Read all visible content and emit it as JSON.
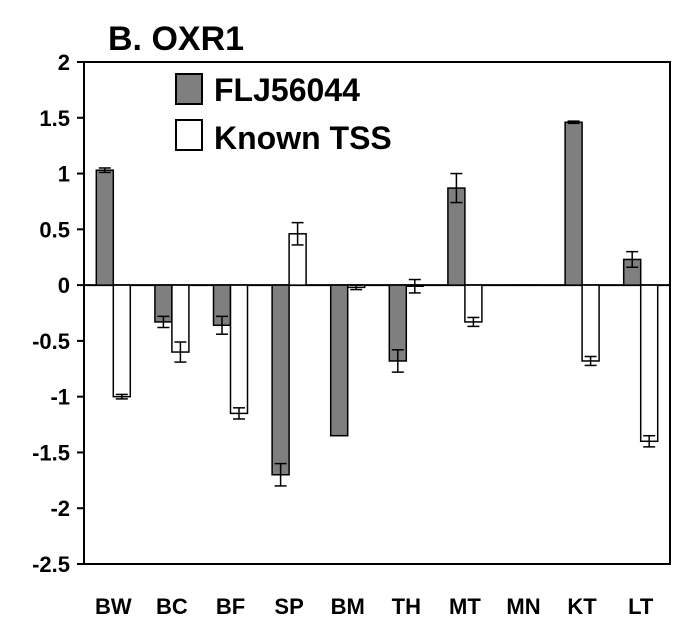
{
  "chart_data": {
    "type": "bar",
    "title": "B. OXR1",
    "xlabel": "",
    "ylabel": "",
    "ylim": [
      -2.5,
      2
    ],
    "yticks": [
      2,
      1.5,
      1,
      0.5,
      0,
      -0.5,
      -1,
      -1.5,
      -2,
      -2.5
    ],
    "ytick_labels": [
      "2",
      "1.5",
      "1",
      "0.5",
      "0",
      "-0.5",
      "-1",
      "-1.5",
      "-2",
      "-2.5"
    ],
    "categories": [
      "BW",
      "BC",
      "BF",
      "SP",
      "BM",
      "TH",
      "MT",
      "MN",
      "KT",
      "LT"
    ],
    "grid": false,
    "legend_position": "top-left",
    "series": [
      {
        "name": "FLJ56044",
        "color": "#7f7f7f",
        "values": [
          1.03,
          -0.33,
          -0.36,
          -1.7,
          -1.35,
          -0.68,
          0.87,
          0.0,
          1.46,
          0.23
        ],
        "errors": [
          0.02,
          0.05,
          0.08,
          0.1,
          0.0,
          0.1,
          0.13,
          0.0,
          0.01,
          0.07
        ]
      },
      {
        "name": "Known TSS",
        "color": "#ffffff",
        "values": [
          -1.0,
          -0.6,
          -1.15,
          0.46,
          -0.02,
          -0.01,
          -0.33,
          0.0,
          -0.68,
          -1.4
        ],
        "errors": [
          0.02,
          0.09,
          0.05,
          0.1,
          0.02,
          0.06,
          0.04,
          0.0,
          0.04,
          0.05
        ]
      }
    ]
  }
}
